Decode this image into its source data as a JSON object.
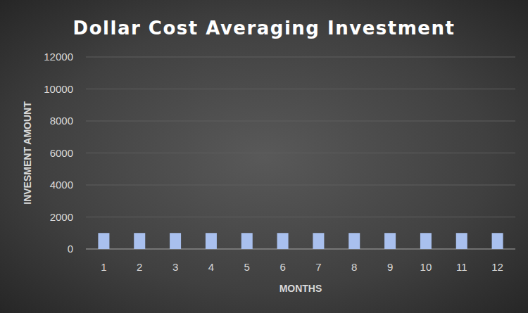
{
  "chart_data": {
    "type": "bar",
    "title": "Dollar Cost Averaging Investment",
    "x_label": "MONTHS",
    "y_label": "INVESMENT AMOUNT",
    "categories": [
      "1",
      "2",
      "3",
      "4",
      "5",
      "6",
      "7",
      "8",
      "9",
      "10",
      "11",
      "12"
    ],
    "values": [
      1000,
      1000,
      1000,
      1000,
      1000,
      1000,
      1000,
      1000,
      1000,
      1000,
      1000,
      1000
    ],
    "color": "#a9c0ee",
    "ylim": [
      0,
      12000
    ],
    "yticks": [
      0,
      2000,
      4000,
      6000,
      8000,
      10000,
      12000
    ],
    "grid": true
  }
}
